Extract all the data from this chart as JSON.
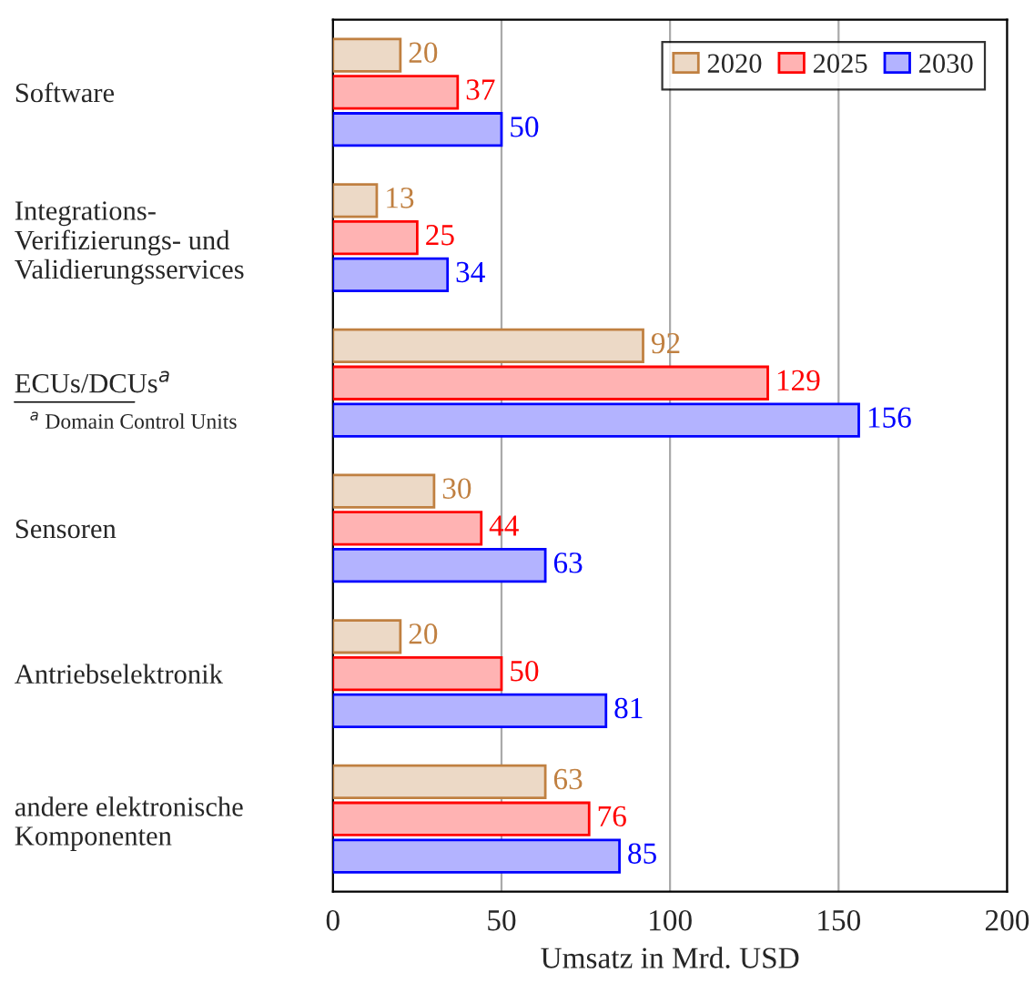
{
  "chart_data": {
    "type": "bar",
    "orientation": "horizontal",
    "xlabel": "Umsatz in Mrd. USD",
    "categories": [
      "Software",
      "Integrations-\nVerifizierungs- und\nValidierungsservices",
      "ECUs/DCUs$^{a}$",
      "Sensoren",
      "Antriebselektronik",
      "andere elektronische\nKomponenten"
    ],
    "series": [
      {
        "name": "2020",
        "color": "#ecd9c6",
        "values": [
          20,
          13,
          92,
          30,
          20,
          63
        ]
      },
      {
        "name": "2025",
        "color": "#ffb3b3",
        "values": [
          37,
          25,
          129,
          44,
          50,
          76
        ]
      },
      {
        "name": "2030",
        "color": "#b3b3ff",
        "values": [
          50,
          34,
          156,
          63,
          81,
          85
        ]
      }
    ],
    "xlim": [
      0,
      200
    ],
    "xticks": [
      0,
      50,
      100,
      150,
      200
    ],
    "grid": "x",
    "legend": "top right",
    "data_labels": true,
    "annotations": [
      "$^{a}$ Domain Control Units"
    ]
  }
}
